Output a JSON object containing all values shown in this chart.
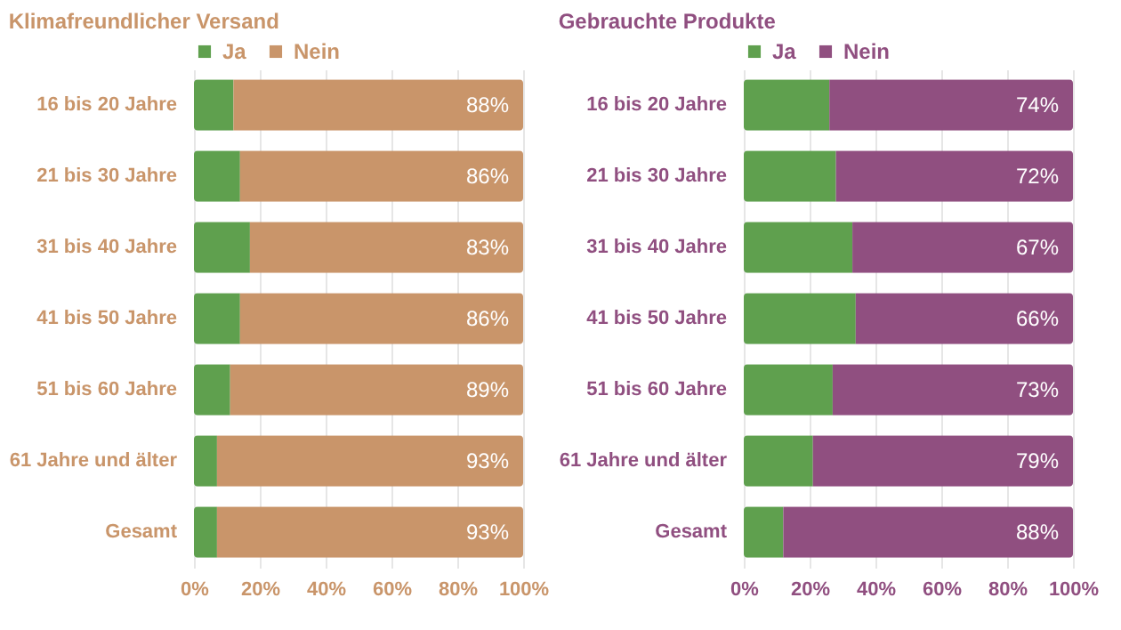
{
  "chart_data": [
    {
      "type": "bar",
      "title": "Klimafreundlicher Versand",
      "orientation": "horizontal",
      "stacked": true,
      "categories": [
        "16 bis 20 Jahre",
        "21 bis 30 Jahre",
        "31 bis 40 Jahre",
        "41 bis 50 Jahre",
        "51 bis 60 Jahre",
        "61 Jahre und älter",
        "Gesamt"
      ],
      "series": [
        {
          "name": "Ja",
          "color": "#5fa04e",
          "values": [
            12,
            14,
            17,
            14,
            11,
            7,
            7
          ]
        },
        {
          "name": "Nein",
          "color": "#c9956a",
          "values": [
            88,
            86,
            83,
            86,
            89,
            93,
            93
          ],
          "value_labels": [
            "88%",
            "86%",
            "83%",
            "86%",
            "89%",
            "93%",
            "93%"
          ]
        }
      ],
      "xlim": [
        0,
        100
      ],
      "xticks": [
        {
          "value": 0,
          "label": "0%"
        },
        {
          "value": 20,
          "label": "20%"
        },
        {
          "value": 40,
          "label": "40%"
        },
        {
          "value": 60,
          "label": "60%"
        },
        {
          "value": 80,
          "label": "80%"
        },
        {
          "value": 100,
          "label": "100%"
        }
      ],
      "grid": "x",
      "legend": "top"
    },
    {
      "type": "bar",
      "title": "Gebrauchte Produkte",
      "orientation": "horizontal",
      "stacked": true,
      "categories": [
        "16 bis 20 Jahre",
        "21 bis 30 Jahre",
        "31 bis 40 Jahre",
        "41 bis 50 Jahre",
        "51 bis 60 Jahre",
        "61 Jahre und älter",
        "Gesamt"
      ],
      "series": [
        {
          "name": "Ja",
          "color": "#5fa04e",
          "values": [
            26,
            28,
            33,
            34,
            27,
            21,
            12
          ]
        },
        {
          "name": "Nein",
          "color": "#904f80",
          "values": [
            74,
            72,
            67,
            66,
            73,
            79,
            88
          ],
          "value_labels": [
            "74%",
            "72%",
            "67%",
            "66%",
            "73%",
            "79%",
            "88%"
          ]
        }
      ],
      "xlim": [
        0,
        100
      ],
      "xticks": [
        {
          "value": 0,
          "label": "0%"
        },
        {
          "value": 20,
          "label": "20%"
        },
        {
          "value": 40,
          "label": "40%"
        },
        {
          "value": 60,
          "label": "60%"
        },
        {
          "value": 80,
          "label": "80%"
        },
        {
          "value": 100,
          "label": "100%"
        }
      ],
      "grid": "x",
      "legend": "top"
    }
  ]
}
